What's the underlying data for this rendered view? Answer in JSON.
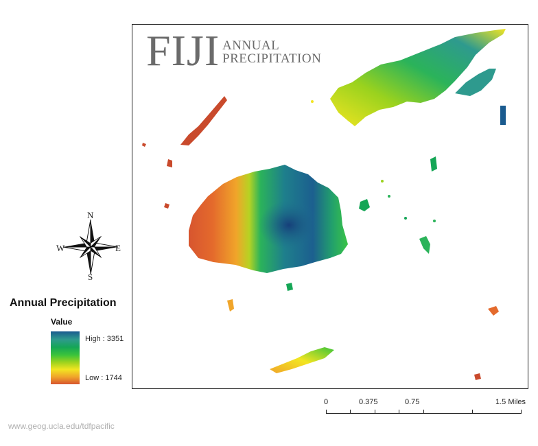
{
  "title": {
    "main": "FIJI",
    "line1": "ANNUAL",
    "line2": "PRECIPITATION"
  },
  "compass": {
    "n": "N",
    "s": "S",
    "e": "E",
    "w": "W"
  },
  "legend": {
    "title": "Annual Precipitation",
    "value_label": "Value",
    "high": "High : 3351",
    "low": "Low : 1744",
    "high_value": 3351,
    "low_value": 1744,
    "colors": [
      "#1a5b8f",
      "#15a656",
      "#9ad21e",
      "#f2e521",
      "#d7552f"
    ]
  },
  "scale_bar": {
    "labels": [
      "0",
      "0.375",
      "0.75",
      "1.5 Miles"
    ]
  },
  "credit": "www.geog.ucla.edu/tdfpacific"
}
